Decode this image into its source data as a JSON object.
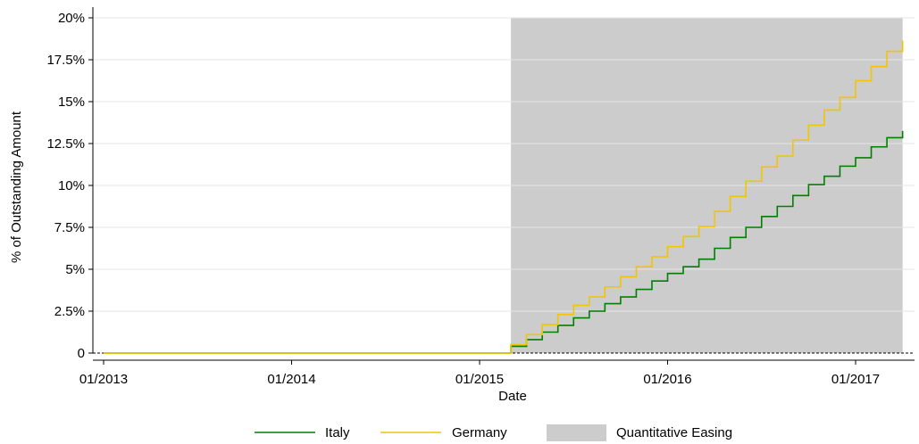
{
  "chart_data": {
    "type": "line",
    "xlabel": "Date",
    "ylabel": "% of Outstanding Amount",
    "x_ticks": [
      "01/2013",
      "01/2014",
      "01/2015",
      "01/2016",
      "01/2017"
    ],
    "y_ticks": [
      {
        "value": 0,
        "label": "0"
      },
      {
        "value": 2.5,
        "label": "2.5%"
      },
      {
        "value": 5,
        "label": "5%"
      },
      {
        "value": 7.5,
        "label": "7.5%"
      },
      {
        "value": 10,
        "label": "10%"
      },
      {
        "value": 12.5,
        "label": "12.5%"
      },
      {
        "value": 15,
        "label": "15%"
      },
      {
        "value": 17.5,
        "label": "17.5%"
      },
      {
        "value": 20,
        "label": "20%"
      }
    ],
    "xlim": [
      "2013-01",
      "2017-04"
    ],
    "ylim": [
      0,
      20
    ],
    "grid": true,
    "legend_position": "bottom",
    "shaded_region": {
      "name": "Quantitative Easing",
      "start": "2015-03",
      "end": "2017-04",
      "color": "#cccccc"
    },
    "step_dates": [
      "2013-01",
      "2015-03",
      "2015-04",
      "2015-05",
      "2015-06",
      "2015-07",
      "2015-08",
      "2015-09",
      "2015-10",
      "2015-11",
      "2015-12",
      "2016-01",
      "2016-02",
      "2016-03",
      "2016-04",
      "2016-05",
      "2016-06",
      "2016-07",
      "2016-08",
      "2016-09",
      "2016-10",
      "2016-11",
      "2016-12",
      "2017-01",
      "2017-02",
      "2017-03",
      "2017-04"
    ],
    "series": [
      {
        "name": "Italy",
        "color": "#008000",
        "values": [
          0,
          0.4,
          0.8,
          1.25,
          1.65,
          2.1,
          2.5,
          2.95,
          3.35,
          3.8,
          4.3,
          4.75,
          5.15,
          5.6,
          6.25,
          6.9,
          7.5,
          8.15,
          8.75,
          9.4,
          10.05,
          10.55,
          11.15,
          11.65,
          12.3,
          12.85,
          13.25
        ]
      },
      {
        "name": "Germany",
        "color": "#f2c500",
        "values": [
          0,
          0.5,
          1.1,
          1.7,
          2.3,
          2.85,
          3.35,
          3.95,
          4.55,
          5.15,
          5.75,
          6.35,
          6.95,
          7.55,
          8.45,
          9.35,
          10.25,
          11.1,
          11.75,
          12.7,
          13.6,
          14.5,
          15.25,
          16.25,
          17.1,
          18.0,
          18.65
        ]
      }
    ]
  }
}
